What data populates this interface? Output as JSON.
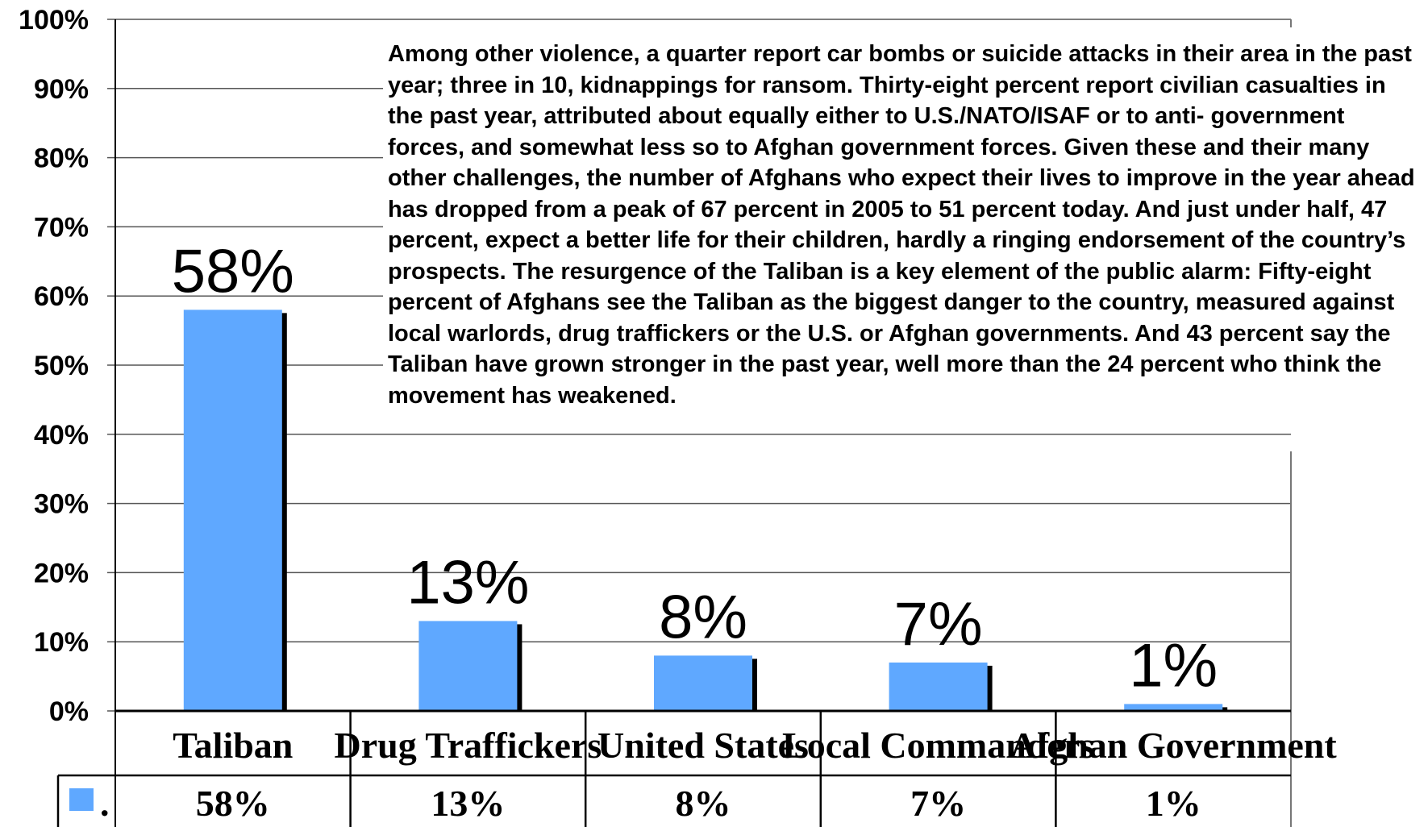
{
  "chart_data": {
    "type": "bar",
    "categories": [
      "Taliban",
      "Drug Traffickers",
      "United States",
      "Local Commanders",
      "Afghan Government"
    ],
    "series": [
      {
        "name": ".",
        "values": [
          58,
          13,
          8,
          7,
          1
        ],
        "color": "#5fa8ff"
      }
    ],
    "value_labels": [
      "58%",
      "13%",
      "8%",
      "7%",
      "1%"
    ],
    "y_ticks": [
      "0%",
      "10%",
      "20%",
      "30%",
      "40%",
      "50%",
      "60%",
      "70%",
      "80%",
      "90%",
      "100%"
    ],
    "ylim": [
      0,
      100
    ],
    "grid": true,
    "legend": "data table below x-axis",
    "data_table": true
  },
  "annotation": {
    "text": "Among other violence, a quarter report car bombs or suicide attacks in their area in the past year; three in 10, kidnappings for ransom. Thirty-eight percent report civilian casualties in the past year, attributed about equally either to U.S./NATO/ISAF or to anti- government forces, and somewhat less so to Afghan government forces.  Given these and their many other challenges, the number of Afghans who expect their lives to improve in the year ahead has dropped from a peak of 67 percent in 2005 to 51 percent today. And just under half, 47 percent, expect a better life for their children, hardly a ringing endorsement of the country’s prospects. The resurgence of the Taliban is a key element of the public alarm: Fifty-eight percent of Afghans see the Taliban as the biggest danger to the country, measured against local warlords, drug traffickers or the U.S. or Afghan governments. And 43 percent say the Taliban have grown stronger in the past year, well more than the 24 percent who think the movement has weakened."
  }
}
